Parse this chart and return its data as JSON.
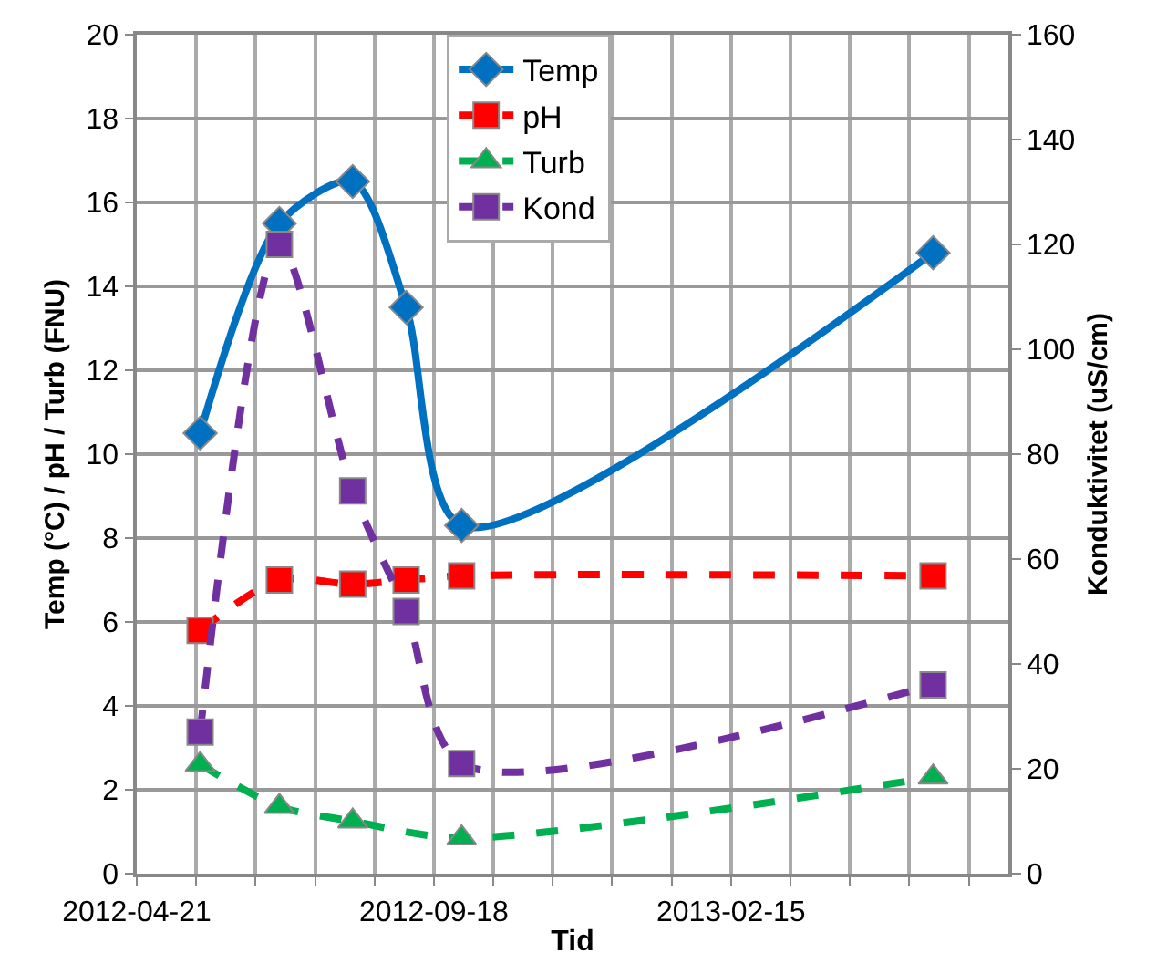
{
  "chart_data": {
    "type": "line",
    "xlabel": "Tid",
    "ylabel": "Temp (°C) / pH / Turb (FNU)",
    "y2label": "Konduktivitet (uS/cm)",
    "x": [
      "2012-05-23",
      "2012-07-02",
      "2012-08-08",
      "2012-09-04",
      "2012-10-02",
      "2013-05-28"
    ],
    "series": [
      {
        "name": "Temp",
        "color": "#0070c0",
        "marker": "diamond",
        "line_style": "solid",
        "values": [
          10.5,
          15.5,
          16.5,
          13.5,
          8.3,
          14.8
        ]
      },
      {
        "name": "pH",
        "color": "#ff0000",
        "marker": "square",
        "line_style": "dashed",
        "values": [
          5.8,
          7.0,
          6.9,
          7.0,
          7.1,
          7.1
        ]
      },
      {
        "name": "Turb",
        "color": "#00b050",
        "marker": "triangle",
        "line_style": "dashed",
        "x": [
          "2012-05-23",
          "2012-07-02",
          "2012-08-08",
          "2012-10-02",
          "2013-05-28"
        ],
        "values": [
          2.6,
          1.6,
          1.25,
          0.85,
          2.3
        ]
      },
      {
        "name": "Kond",
        "color": "#7030a0",
        "marker": "square",
        "line_style": "dashed",
        "axis": "y2",
        "values": [
          27,
          120,
          73,
          50,
          21,
          36
        ]
      }
    ],
    "xlim": [
      "2012-04-21",
      "2013-07-05"
    ],
    "xticks": [
      {
        "value": "2012-04-21",
        "label": "2012-04-21"
      },
      {
        "value": "2012-05-21",
        "label": null
      },
      {
        "value": "2012-06-20",
        "label": null
      },
      {
        "value": "2012-07-20",
        "label": null
      },
      {
        "value": "2012-08-19",
        "label": null
      },
      {
        "value": "2012-09-18",
        "label": "2012-09-18"
      },
      {
        "value": "2012-10-18",
        "label": null
      },
      {
        "value": "2012-11-17",
        "label": null
      },
      {
        "value": "2012-12-17",
        "label": null
      },
      {
        "value": "2013-01-16",
        "label": null
      },
      {
        "value": "2013-02-15",
        "label": "2013-02-15"
      },
      {
        "value": "2013-03-17",
        "label": null
      },
      {
        "value": "2013-04-16",
        "label": null
      },
      {
        "value": "2013-05-16",
        "label": null
      },
      {
        "value": "2013-06-15",
        "label": null
      }
    ],
    "ylim": [
      0,
      20
    ],
    "yticks": [
      0,
      2,
      4,
      6,
      8,
      10,
      12,
      14,
      16,
      18,
      20
    ],
    "y2lim": [
      0,
      160
    ],
    "y2ticks": [
      0,
      20,
      40,
      60,
      80,
      100,
      120,
      140,
      160
    ],
    "grid": true,
    "legend": "top"
  }
}
